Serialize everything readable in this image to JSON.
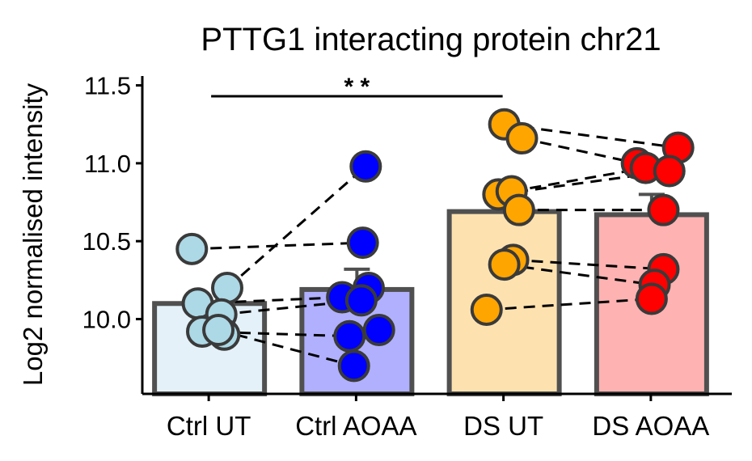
{
  "chart_data": {
    "type": "bar",
    "title": "PTTG1 interacting protein chr21",
    "xlabel": "",
    "ylabel": "Log2 normalised intensity",
    "ylim": [
      9.52,
      11.56
    ],
    "yticks": [
      10.0,
      10.5,
      11.0,
      11.5
    ],
    "ytick_labels": [
      "10.0",
      "10.5",
      "11.0",
      "11.5"
    ],
    "categories": [
      "Ctrl UT",
      "Ctrl AOAA",
      "DS UT",
      "DS AOAA"
    ],
    "bar_fill_colors": [
      "#e4f1f8",
      "#b0b0ff",
      "#fde2b0",
      "#ffb2b2"
    ],
    "point_colors": [
      "#add8e6",
      "#0000ff",
      "#ffa500",
      "#ff0000"
    ],
    "bar_values": [
      10.1,
      10.19,
      10.69,
      10.67
    ],
    "error_bars": [
      [
        10.1,
        10.1
      ],
      [
        10.19,
        10.32
      ],
      [
        10.69,
        10.69
      ],
      [
        10.67,
        10.8
      ]
    ],
    "points": [
      [
        [
          -0.12,
          10.45
        ],
        [
          0.12,
          10.2
        ],
        [
          -0.08,
          10.1
        ],
        [
          0.08,
          10.03
        ],
        [
          -0.05,
          9.92
        ],
        [
          0.1,
          9.9
        ],
        [
          0.06,
          9.93
        ]
      ],
      [
        [
          0.06,
          10.98
        ],
        [
          0.04,
          10.49
        ],
        [
          0.08,
          10.2
        ],
        [
          -0.1,
          10.14
        ],
        [
          0.03,
          10.12
        ],
        [
          0.15,
          9.93
        ],
        [
          -0.05,
          9.89
        ],
        [
          -0.02,
          9.7
        ]
      ],
      [
        [
          0.0,
          11.25
        ],
        [
          0.12,
          11.16
        ],
        [
          -0.04,
          10.8
        ],
        [
          0.05,
          10.82
        ],
        [
          0.1,
          10.7
        ],
        [
          0.06,
          10.38
        ],
        [
          0.0,
          10.35
        ],
        [
          -0.12,
          10.06
        ]
      ],
      [
        [
          -0.1,
          11.0
        ],
        [
          0.18,
          11.1
        ],
        [
          -0.04,
          10.97
        ],
        [
          0.12,
          10.95
        ],
        [
          0.08,
          10.7
        ],
        [
          0.08,
          10.32
        ],
        [
          0.02,
          10.22
        ],
        [
          0.0,
          10.13
        ]
      ]
    ],
    "connections": [
      [
        [
          0,
          0
        ],
        [
          1,
          1
        ]
      ],
      [
        [
          0,
          1
        ],
        [
          1,
          0
        ]
      ],
      [
        [
          0,
          2
        ],
        [
          1,
          3
        ]
      ],
      [
        [
          0,
          3
        ],
        [
          1,
          4
        ]
      ],
      [
        [
          0,
          4
        ],
        [
          1,
          6
        ]
      ],
      [
        [
          0,
          6
        ],
        [
          1,
          7
        ]
      ],
      [
        [
          2,
          0
        ],
        [
          3,
          1
        ]
      ],
      [
        [
          2,
          1
        ],
        [
          3,
          0
        ]
      ],
      [
        [
          2,
          2
        ],
        [
          3,
          3
        ]
      ],
      [
        [
          2,
          3
        ],
        [
          3,
          2
        ]
      ],
      [
        [
          2,
          4
        ],
        [
          3,
          4
        ]
      ],
      [
        [
          2,
          5
        ],
        [
          3,
          5
        ]
      ],
      [
        [
          2,
          6
        ],
        [
          3,
          6
        ]
      ],
      [
        [
          2,
          7
        ],
        [
          3,
          7
        ]
      ]
    ],
    "significance": {
      "from": 0,
      "to": 2,
      "y": 11.43,
      "label": "* *"
    },
    "grid": false,
    "legend": "none"
  }
}
